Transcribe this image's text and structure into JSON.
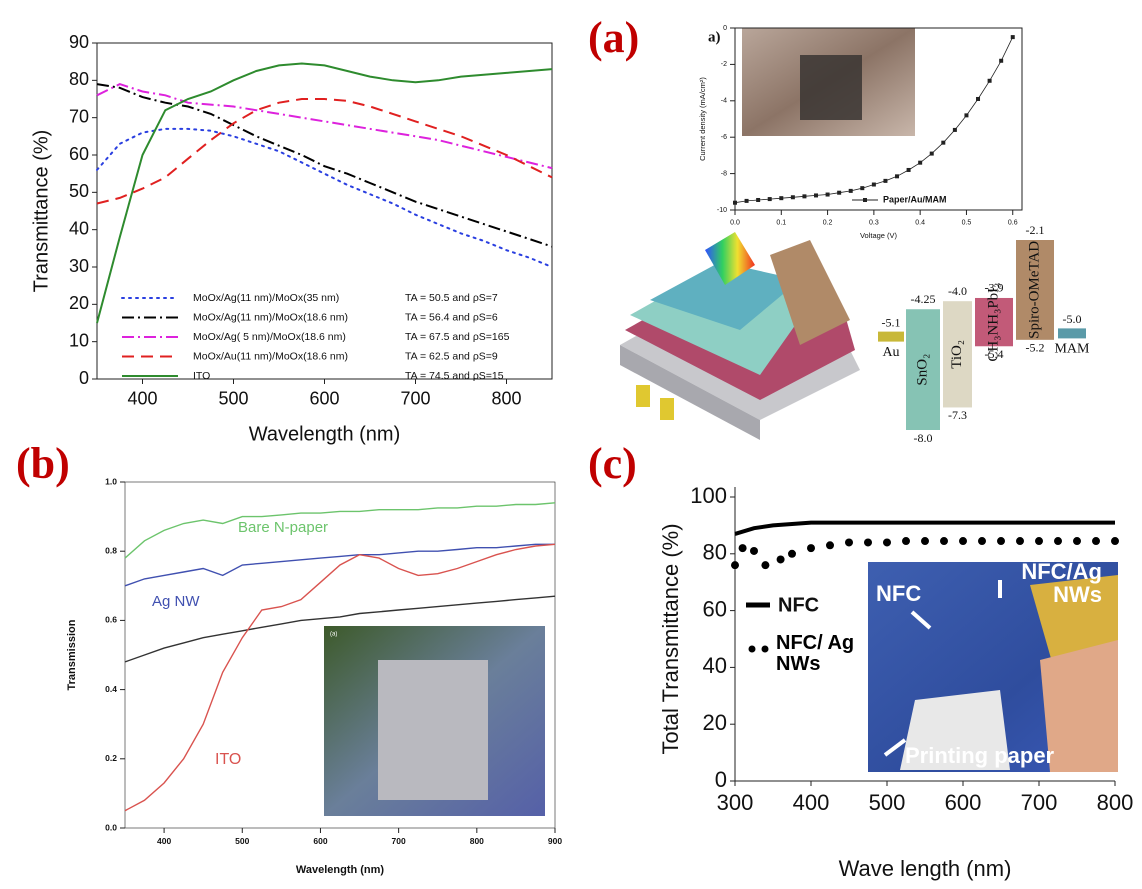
{
  "panel_labels": [
    "(a)",
    "(b)",
    "(c)"
  ],
  "chart_data": [
    {
      "type": "line",
      "ylabel": "Transmittance (%)",
      "xlabel": "Wavelength (nm)",
      "x": [
        350,
        375,
        400,
        425,
        450,
        475,
        500,
        525,
        550,
        575,
        600,
        625,
        650,
        675,
        700,
        725,
        750,
        775,
        800,
        825,
        850
      ],
      "xlim": [
        350,
        850
      ],
      "xticks": [
        400,
        500,
        600,
        700,
        800
      ],
      "ylim": [
        0,
        90
      ],
      "yticks": [
        0,
        10,
        20,
        30,
        40,
        50,
        60,
        70,
        80,
        90
      ],
      "series": [
        {
          "name": "MoOx/Ag(11 nm)/MoOx(35 nm)",
          "note": "TA = 50.5 and ρS=7",
          "color": "#2a3fe0",
          "style": "dot",
          "values": [
            56,
            63,
            66,
            67,
            67,
            66.5,
            65,
            63,
            61,
            58,
            55,
            52,
            49.5,
            47,
            44,
            41.5,
            39,
            37,
            34.5,
            32.5,
            30
          ]
        },
        {
          "name": "MoOx/Ag(11 nm)/MoOx(18.6 nm)",
          "note": "TA = 56.4 and ρS=6",
          "color": "#000000",
          "style": "dashdot",
          "values": [
            79,
            78,
            75.5,
            74,
            73,
            71,
            68,
            65,
            62.5,
            60,
            57,
            55,
            52.5,
            50,
            47.5,
            45.5,
            43.5,
            41.5,
            39.5,
            37.5,
            35.5
          ]
        },
        {
          "name": "MoOx/Ag( 5 nm)/MoOx(18.6 nm)",
          "note": "TA = 67.5 and ρS=165",
          "color": "#dd22dd",
          "style": "dashdot",
          "values": [
            76,
            79,
            77,
            76,
            74,
            73.5,
            73,
            72,
            71,
            70,
            69,
            68,
            67,
            66,
            65,
            64,
            62.5,
            61,
            59.5,
            58,
            56.5
          ]
        },
        {
          "name": "MoOx/Au(11 nm)/MoOx(18.6 nm)",
          "note": "TA = 62.5 and ρS=9",
          "color": "#e02020",
          "style": "dash",
          "values": [
            47,
            48.5,
            51,
            54,
            59,
            64,
            68.5,
            72,
            74,
            75,
            75,
            74.5,
            73,
            71,
            69,
            67,
            65,
            62.5,
            60,
            57,
            54
          ]
        },
        {
          "name": "ITO",
          "note": "TA = 74.5 and ρS=15",
          "color": "#2e8b2e",
          "style": "solid",
          "values": [
            15,
            38,
            60,
            72,
            75,
            77,
            80,
            82.5,
            84,
            84.5,
            84,
            82.5,
            81,
            80,
            79.5,
            80,
            81,
            81.5,
            82,
            82.5,
            83
          ]
        }
      ]
    },
    {
      "type": "line",
      "title": "a)",
      "ylabel": "Current density (mA/cm²)",
      "xlabel": "Voltage (V)",
      "x": [
        0,
        0.025,
        0.05,
        0.075,
        0.1,
        0.125,
        0.15,
        0.175,
        0.2,
        0.225,
        0.25,
        0.275,
        0.3,
        0.325,
        0.35,
        0.375,
        0.4,
        0.425,
        0.45,
        0.475,
        0.5,
        0.525,
        0.55,
        0.575,
        0.6
      ],
      "xlim": [
        0,
        0.62
      ],
      "xticks": [
        {
          "value": 0,
          "label": "0.0"
        },
        0.1,
        0.2,
        0.3,
        0.4,
        0.5,
        0.6
      ],
      "ylim": [
        -10,
        0
      ],
      "yticks": [
        -10,
        -8,
        -6,
        -4,
        -2,
        0
      ],
      "series": [
        {
          "name": "Paper/Au/MAM",
          "color": "#222222",
          "style": "solid",
          "marker": "square",
          "values": [
            -9.6,
            -9.5,
            -9.45,
            -9.4,
            -9.35,
            -9.3,
            -9.25,
            -9.2,
            -9.15,
            -9.05,
            -8.95,
            -8.8,
            -8.6,
            -8.4,
            -8.15,
            -7.8,
            -7.4,
            -6.9,
            -6.3,
            -5.6,
            -4.8,
            -3.9,
            -2.9,
            -1.8,
            -0.5
          ]
        }
      ]
    },
    {
      "type": "line",
      "ylabel": "Transmission",
      "xlabel": "Wavelength (nm)",
      "inset_label": "(a)",
      "x": [
        350,
        375,
        400,
        425,
        450,
        475,
        500,
        525,
        550,
        575,
        600,
        625,
        650,
        675,
        700,
        725,
        750,
        775,
        800,
        825,
        850,
        875,
        900
      ],
      "xlim": [
        350,
        900
      ],
      "xticks": [
        400,
        500,
        600,
        700,
        800,
        900
      ],
      "ylim": [
        0,
        1
      ],
      "yticks": [
        {
          "value": 0,
          "label": "0.0"
        },
        0.2,
        0.4,
        0.6,
        0.8,
        {
          "value": 1,
          "label": "1.0"
        }
      ],
      "series": [
        {
          "name": "Bare N-paper",
          "color": "#6cc46c",
          "style": "solid",
          "values": [
            0.78,
            0.83,
            0.86,
            0.88,
            0.89,
            0.88,
            0.9,
            0.9,
            0.905,
            0.91,
            0.91,
            0.915,
            0.915,
            0.92,
            0.92,
            0.92,
            0.925,
            0.925,
            0.93,
            0.93,
            0.935,
            0.935,
            0.94
          ]
        },
        {
          "name": "Ag NW",
          "color": "#4050b0",
          "style": "solid",
          "values": [
            0.7,
            0.72,
            0.73,
            0.74,
            0.75,
            0.73,
            0.76,
            0.765,
            0.77,
            0.775,
            0.78,
            0.785,
            0.79,
            0.79,
            0.795,
            0.8,
            0.8,
            0.805,
            0.81,
            0.81,
            0.815,
            0.82,
            0.82
          ]
        },
        {
          "color": "#333333",
          "style": "solid",
          "values": [
            0.48,
            0.5,
            0.52,
            0.535,
            0.55,
            0.56,
            0.57,
            0.58,
            0.59,
            0.6,
            0.605,
            0.61,
            0.62,
            0.625,
            0.63,
            0.635,
            0.64,
            0.645,
            0.65,
            0.655,
            0.66,
            0.665,
            0.67
          ]
        },
        {
          "name": "ITO",
          "color": "#d9534f",
          "style": "solid",
          "values": [
            0.05,
            0.08,
            0.13,
            0.2,
            0.3,
            0.45,
            0.55,
            0.63,
            0.64,
            0.66,
            0.71,
            0.76,
            0.79,
            0.78,
            0.75,
            0.73,
            0.735,
            0.75,
            0.77,
            0.79,
            0.805,
            0.815,
            0.82
          ]
        }
      ]
    },
    {
      "type": "line",
      "ylabel": "Total Transmittance  (%)",
      "xlabel": "Wave length (nm)",
      "xlim": [
        300,
        800
      ],
      "xticks": [
        300,
        400,
        500,
        600,
        700,
        800
      ],
      "ylim": [
        0,
        100
      ],
      "yticks": [
        0,
        20,
        40,
        60,
        80,
        100
      ],
      "annotations": [
        "NFC",
        "NFC/Ag NWs",
        "Printing paper"
      ],
      "series": [
        {
          "name": "NFC",
          "color": "#000000",
          "style": "solid",
          "x": [
            300,
            325,
            350,
            375,
            400,
            450,
            500,
            550,
            600,
            650,
            700,
            750,
            800
          ],
          "values": [
            87,
            89,
            90,
            90.5,
            91,
            91,
            91,
            91,
            91,
            91,
            91,
            91,
            91
          ]
        },
        {
          "name": "NFC/ Ag NWs",
          "color": "#000000",
          "style": "dots",
          "x": [
            300,
            310,
            325,
            340,
            360,
            375,
            400,
            425,
            450,
            475,
            500,
            525,
            550,
            575,
            600,
            625,
            650,
            675,
            700,
            725,
            750,
            775,
            800
          ],
          "values": [
            76,
            82,
            81,
            76,
            78,
            80,
            82,
            83,
            84,
            84,
            84,
            84.5,
            84.5,
            84.5,
            84.5,
            84.5,
            84.5,
            84.5,
            84.5,
            84.5,
            84.5,
            84.5,
            84.5
          ]
        }
      ]
    }
  ],
  "energy_diagram": {
    "layers": [
      {
        "name": "Au",
        "level": -5.1,
        "color": "#c8b838"
      },
      {
        "name": "SnO₂",
        "top": -4.25,
        "bottom": {
          "value": -8.0,
          "label": "-8.0"
        },
        "color": "#86c3b4"
      },
      {
        "name": "TiO₂",
        "top": {
          "value": -4.0,
          "label": "-4.0"
        },
        "bottom": -7.3,
        "color": "#ddd8c4"
      },
      {
        "name": "CH₃NH₃PbI₃",
        "top": -3.9,
        "bottom": -5.4,
        "color": "#c25a78"
      },
      {
        "name": "Spiro-OMeTAD",
        "top": -2.1,
        "bottom": -5.2,
        "color": "#b08a68"
      },
      {
        "name": "MAM",
        "level": {
          "value": -5.0,
          "label": "-5.0"
        },
        "color": "#5a9aa8"
      }
    ]
  }
}
